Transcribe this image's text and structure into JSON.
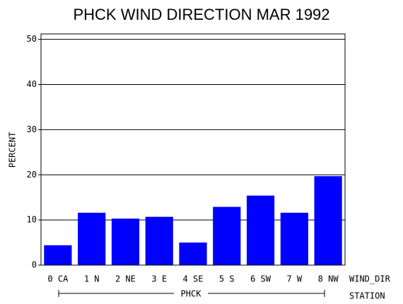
{
  "chart_data": {
    "type": "bar",
    "title": "PHCK WIND DIRECTION MAR 1992",
    "y_label": "PERCENT",
    "x_label": "WIND_DIR",
    "group_label": "PHCK",
    "group_axis_label": "STATION",
    "categories": [
      "0 CA",
      "1 N",
      "2 NE",
      "3 E",
      "4 SE",
      "5 S",
      "6 SW",
      "7 W",
      "8 NW"
    ],
    "values": [
      4.4,
      11.6,
      10.3,
      10.7,
      5.0,
      12.9,
      15.4,
      11.6,
      19.7
    ],
    "color": "#0000ff",
    "ylim": [
      0,
      51.2
    ],
    "yticks": [
      0,
      10,
      20,
      30,
      40,
      50
    ],
    "grid": true
  }
}
